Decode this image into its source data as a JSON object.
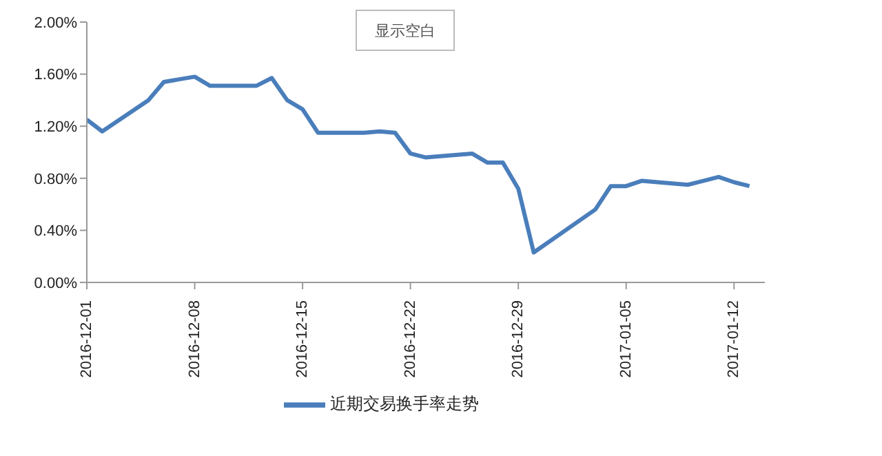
{
  "chart_data": {
    "type": "line",
    "annotations": [
      "显示空白"
    ],
    "x": [
      "2016-12-01",
      "2016-12-02",
      "2016-12-05",
      "2016-12-06",
      "2016-12-07",
      "2016-12-08",
      "2016-12-09",
      "2016-12-12",
      "2016-12-13",
      "2016-12-14",
      "2016-12-15",
      "2016-12-16",
      "2016-12-19",
      "2016-12-20",
      "2016-12-21",
      "2016-12-22",
      "2016-12-23",
      "2016-12-26",
      "2016-12-27",
      "2016-12-28",
      "2016-12-29",
      "2016-12-30",
      "2017-01-03",
      "2017-01-04",
      "2017-01-05",
      "2017-01-06",
      "2017-01-09",
      "2017-01-10",
      "2017-01-11",
      "2017-01-12",
      "2017-01-13"
    ],
    "series": [
      {
        "name": "近期交易换手率走势",
        "color": "#4a7ebb",
        "values": [
          1.25,
          1.16,
          1.4,
          1.54,
          1.56,
          1.58,
          1.51,
          1.51,
          1.57,
          1.4,
          1.33,
          1.15,
          1.15,
          1.16,
          1.15,
          0.99,
          0.96,
          0.99,
          0.92,
          0.92,
          0.72,
          0.23,
          0.56,
          0.74,
          0.74,
          0.78,
          0.75,
          0.78,
          0.81,
          0.77,
          0.74
        ]
      }
    ],
    "xlim": [
      "2016-12-01",
      "2017-01-14"
    ],
    "xticks": [
      "2016-12-01",
      "2016-12-08",
      "2016-12-15",
      "2016-12-22",
      "2016-12-29",
      "2017-01-05",
      "2017-01-12"
    ],
    "ylim": [
      0,
      2
    ],
    "yticks": [
      {
        "value": 0,
        "label": "0.00%"
      },
      {
        "value": 0.4,
        "label": "0.40%"
      },
      {
        "value": 0.8,
        "label": "0.80%"
      },
      {
        "value": 1.2,
        "label": "1.20%"
      },
      {
        "value": 1.6,
        "label": "1.60%"
      },
      {
        "value": 2,
        "label": "2.00%"
      }
    ],
    "legend": "bottom",
    "marker": "none"
  }
}
